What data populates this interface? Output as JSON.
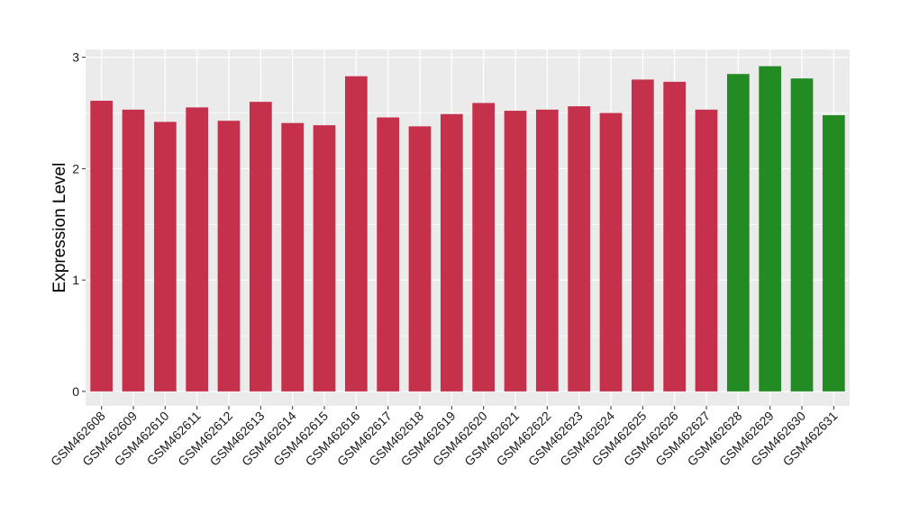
{
  "chart_data": {
    "type": "bar",
    "xlabel": "",
    "ylabel": "Expression Level",
    "ylim": [
      -0.13,
      3.07
    ],
    "yticks": [
      0,
      1,
      2,
      3
    ],
    "ytick_labels": [
      "0",
      "1",
      "2",
      "3"
    ],
    "grid": true,
    "legend": "none",
    "colors": {
      "group1": "#c5304a",
      "group2": "#238b23",
      "panel_bg": "#ebebeb",
      "grid": "#ffffff"
    },
    "categories": [
      "GSM462608",
      "GSM462609",
      "GSM462610",
      "GSM462611",
      "GSM462612",
      "GSM462613",
      "GSM462614",
      "GSM462615",
      "GSM462616",
      "GSM462617",
      "GSM462618",
      "GSM462619",
      "GSM462620",
      "GSM462621",
      "GSM462622",
      "GSM462623",
      "GSM462624",
      "GSM462625",
      "GSM462626",
      "GSM462627",
      "GSM462628",
      "GSM462629",
      "GSM462630",
      "GSM462631"
    ],
    "values": [
      2.61,
      2.53,
      2.42,
      2.55,
      2.43,
      2.6,
      2.41,
      2.39,
      2.83,
      2.46,
      2.38,
      2.49,
      2.59,
      2.52,
      2.53,
      2.56,
      2.5,
      2.8,
      2.78,
      2.53,
      2.85,
      2.92,
      2.81,
      2.48
    ],
    "groups": [
      "group1",
      "group1",
      "group1",
      "group1",
      "group1",
      "group1",
      "group1",
      "group1",
      "group1",
      "group1",
      "group1",
      "group1",
      "group1",
      "group1",
      "group1",
      "group1",
      "group1",
      "group1",
      "group1",
      "group1",
      "group2",
      "group2",
      "group2",
      "group2"
    ]
  }
}
